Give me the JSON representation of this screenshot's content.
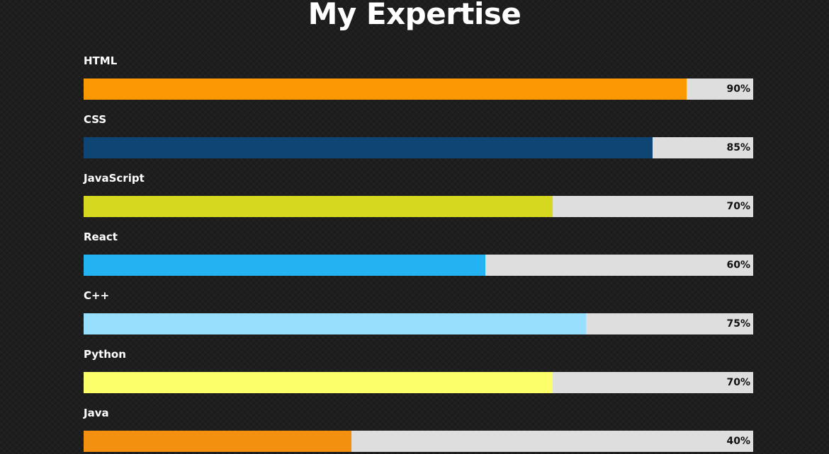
{
  "page": {
    "title": "My Expertise",
    "background_color": "#1e1e1e",
    "track_color": "#dedede"
  },
  "skills": [
    {
      "name": "HTML",
      "percent_label": "90%",
      "level": 90,
      "color": "#fb9804"
    },
    {
      "name": "CSS",
      "percent_label": "85%",
      "level": 85,
      "color": "#0f4574"
    },
    {
      "name": "JavaScript",
      "percent_label": "70%",
      "level": 70,
      "color": "#d5d81e"
    },
    {
      "name": "React",
      "percent_label": "60%",
      "level": 60,
      "color": "#24b3f2"
    },
    {
      "name": "C++",
      "percent_label": "75%",
      "level": 75,
      "color": "#98dffd"
    },
    {
      "name": "Python",
      "percent_label": "70%",
      "level": 70,
      "color": "#fcfe6a"
    },
    {
      "name": "Java",
      "percent_label": "40%",
      "level": 40,
      "color": "#f3900f"
    }
  ]
}
